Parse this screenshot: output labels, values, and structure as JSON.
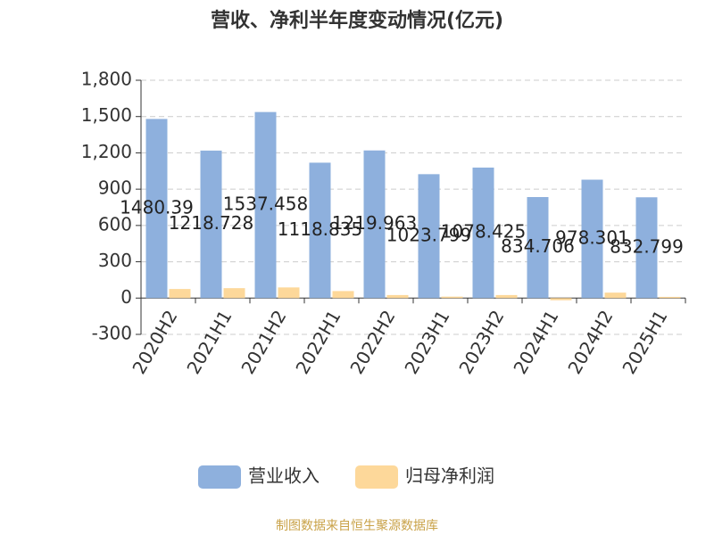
{
  "chart_data": {
    "type": "bar",
    "title": "营收、净利半年度变动情况(亿元)",
    "categories": [
      "2020H2",
      "2021H1",
      "2021H2",
      "2022H1",
      "2022H2",
      "2023H1",
      "2023H2",
      "2024H1",
      "2024H2",
      "2025H1"
    ],
    "series": [
      {
        "name": "营业收入",
        "color": "#8eb0dd",
        "values": [
          1480.39,
          1218.728,
          1537.458,
          1118.835,
          1219.963,
          1023.799,
          1078.425,
          834.706,
          978.301,
          832.799
        ]
      },
      {
        "name": "归母净利润",
        "color": "#fdd89a",
        "values": [
          75,
          82,
          88,
          58,
          25,
          12,
          25,
          -18,
          45,
          10
        ]
      }
    ],
    "ylim": [
      -300,
      1800
    ],
    "yticks": [
      {
        "value": -300,
        "label": "-300"
      },
      0,
      300,
      600,
      900,
      {
        "value": 1200,
        "label": "1,200"
      },
      {
        "value": 1500,
        "label": "1,500"
      },
      {
        "value": 1800,
        "label": "1,800"
      }
    ],
    "grid": true,
    "source": "制图数据来自恒生聚源数据库"
  }
}
